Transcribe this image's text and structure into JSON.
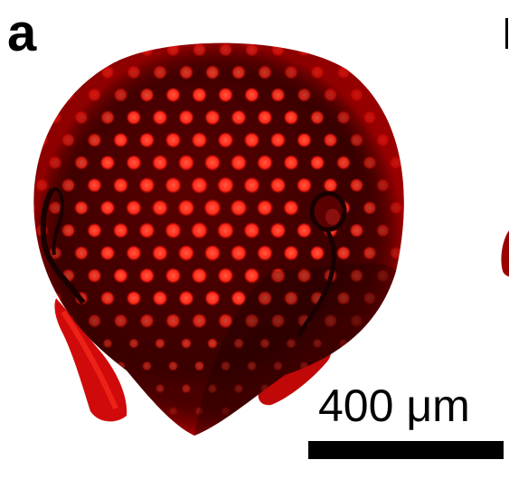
{
  "panel": {
    "label": "a"
  },
  "scale_bar": {
    "text": "400 μm"
  },
  "colors": {
    "background": "#ffffff",
    "tissue_dark": "#3a0000",
    "tissue_mid": "#8a0000",
    "ommatidia": "#ff2a1a",
    "rim": "#c40000",
    "scale_bar": "#000000"
  }
}
